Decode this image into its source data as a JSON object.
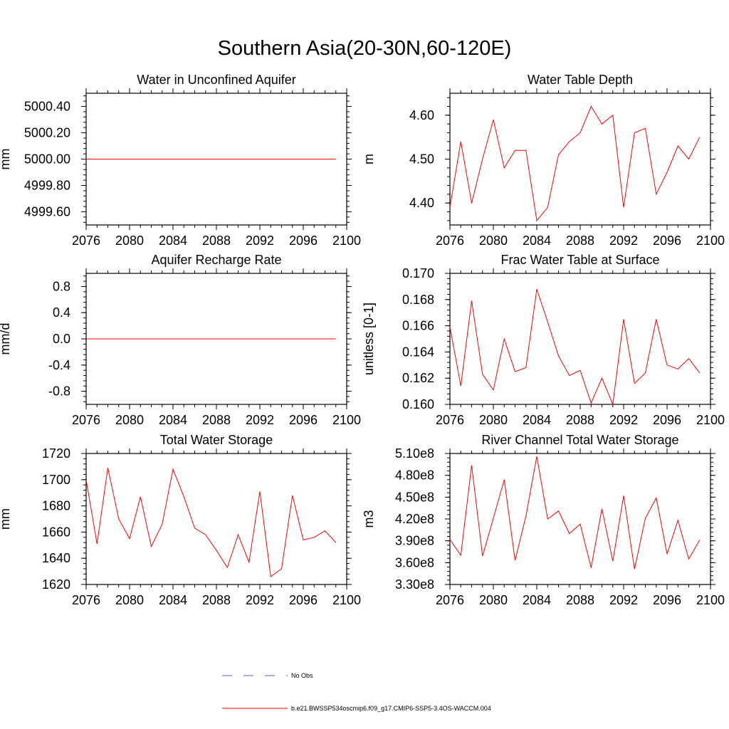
{
  "title": "Southern Asia(20-30N,60-120E)",
  "colors": {
    "series": "#ff0000",
    "obs": "#4466cc",
    "axis": "#000000"
  },
  "legend": {
    "obs_label": "No Obs",
    "model_label": "b.e21.BWSSP534oscmip6.f09_g17.CMIP6-SSP5-3.4OS-WACCM.004"
  },
  "chart_data": [
    {
      "type": "line",
      "title": "Water in Unconfined Aquifer",
      "ylabel": "mm",
      "xlim": [
        2076,
        2100
      ],
      "ylim": [
        4999.5,
        5000.5
      ],
      "xticks": [
        2076,
        2080,
        2084,
        2088,
        2092,
        2096,
        2100
      ],
      "xtick_labels": [
        "2076",
        "2080",
        "2084",
        "2088",
        "2092",
        "2096",
        "2100"
      ],
      "yticks": [
        4999.6,
        4999.8,
        5000.0,
        5000.2,
        5000.4
      ],
      "ytick_labels": [
        "4999.60",
        "4999.80",
        "5000.00",
        "5000.20",
        "5000.40"
      ],
      "x": [
        2076,
        2077,
        2078,
        2079,
        2080,
        2081,
        2082,
        2083,
        2084,
        2085,
        2086,
        2087,
        2088,
        2089,
        2090,
        2091,
        2092,
        2093,
        2094,
        2095,
        2096,
        2097,
        2098,
        2099
      ],
      "series": [
        {
          "values": [
            5000.0,
            5000.0,
            5000.0,
            5000.0,
            5000.0,
            5000.0,
            5000.0,
            5000.0,
            5000.0,
            5000.0,
            5000.0,
            5000.0,
            5000.0,
            5000.0,
            5000.0,
            5000.0,
            5000.0,
            5000.0,
            5000.0,
            5000.0,
            5000.0,
            5000.0,
            5000.0,
            5000.0
          ]
        }
      ]
    },
    {
      "type": "line",
      "title": "Water Table Depth",
      "ylabel": "m",
      "xlim": [
        2076,
        2100
      ],
      "ylim": [
        4.35,
        4.65
      ],
      "xticks": [
        2076,
        2080,
        2084,
        2088,
        2092,
        2096,
        2100
      ],
      "xtick_labels": [
        "2076",
        "2080",
        "2084",
        "2088",
        "2092",
        "2096",
        "2100"
      ],
      "yticks": [
        4.4,
        4.5,
        4.6
      ],
      "ytick_labels": [
        "4.40",
        "4.50",
        "4.60"
      ],
      "x": [
        2076,
        2077,
        2078,
        2079,
        2080,
        2081,
        2082,
        2083,
        2084,
        2085,
        2086,
        2087,
        2088,
        2089,
        2090,
        2091,
        2092,
        2093,
        2094,
        2095,
        2096,
        2097,
        2098,
        2099
      ],
      "series": [
        {
          "values": [
            4.39,
            4.54,
            4.4,
            4.5,
            4.59,
            4.48,
            4.52,
            4.52,
            4.36,
            4.39,
            4.51,
            4.54,
            4.56,
            4.62,
            4.58,
            4.6,
            4.39,
            4.56,
            4.57,
            4.42,
            4.47,
            4.53,
            4.5,
            4.55
          ]
        }
      ]
    },
    {
      "type": "line",
      "title": "Aquifer Recharge Rate",
      "ylabel": "mm/d",
      "xlim": [
        2076,
        2100
      ],
      "ylim": [
        -1.0,
        1.0
      ],
      "xticks": [
        2076,
        2080,
        2084,
        2088,
        2092,
        2096,
        2100
      ],
      "xtick_labels": [
        "2076",
        "2080",
        "2084",
        "2088",
        "2092",
        "2096",
        "2100"
      ],
      "yticks": [
        -0.8,
        -0.4,
        0.0,
        0.4,
        0.8
      ],
      "ytick_labels": [
        "-0.8",
        "-0.4",
        "0.0",
        "0.4",
        "0.8"
      ],
      "x": [
        2076,
        2077,
        2078,
        2079,
        2080,
        2081,
        2082,
        2083,
        2084,
        2085,
        2086,
        2087,
        2088,
        2089,
        2090,
        2091,
        2092,
        2093,
        2094,
        2095,
        2096,
        2097,
        2098,
        2099
      ],
      "series": [
        {
          "values": [
            0,
            0,
            0,
            0,
            0,
            0,
            0,
            0,
            0,
            0,
            0,
            0,
            0,
            0,
            0,
            0,
            0,
            0,
            0,
            0,
            0,
            0,
            0,
            0
          ]
        }
      ]
    },
    {
      "type": "line",
      "title": "Frac Water Table at Surface",
      "ylabel": "unitless [0-1]",
      "xlim": [
        2076,
        2100
      ],
      "ylim": [
        0.16,
        0.17
      ],
      "xticks": [
        2076,
        2080,
        2084,
        2088,
        2092,
        2096,
        2100
      ],
      "xtick_labels": [
        "2076",
        "2080",
        "2084",
        "2088",
        "2092",
        "2096",
        "2100"
      ],
      "yticks": [
        0.16,
        0.162,
        0.164,
        0.166,
        0.168,
        0.17
      ],
      "ytick_labels": [
        "0.160",
        "0.162",
        "0.164",
        "0.166",
        "0.168",
        "0.170"
      ],
      "x": [
        2076,
        2077,
        2078,
        2079,
        2080,
        2081,
        2082,
        2083,
        2084,
        2085,
        2086,
        2087,
        2088,
        2089,
        2090,
        2091,
        2092,
        2093,
        2094,
        2095,
        2096,
        2097,
        2098,
        2099
      ],
      "series": [
        {
          "values": [
            0.1659,
            0.1614,
            0.1679,
            0.1623,
            0.1611,
            0.165,
            0.1625,
            0.1628,
            0.1688,
            0.1663,
            0.1637,
            0.1622,
            0.1626,
            0.1601,
            0.162,
            0.16,
            0.1665,
            0.1616,
            0.1624,
            0.1665,
            0.163,
            0.1627,
            0.1635,
            0.1624
          ]
        }
      ]
    },
    {
      "type": "line",
      "title": "Total Water Storage",
      "ylabel": "mm",
      "xlim": [
        2076,
        2100
      ],
      "ylim": [
        1620,
        1720
      ],
      "xticks": [
        2076,
        2080,
        2084,
        2088,
        2092,
        2096,
        2100
      ],
      "xtick_labels": [
        "2076",
        "2080",
        "2084",
        "2088",
        "2092",
        "2096",
        "2100"
      ],
      "yticks": [
        1620,
        1640,
        1660,
        1680,
        1700,
        1720
      ],
      "ytick_labels": [
        "1620",
        "1640",
        "1660",
        "1680",
        "1700",
        "1720"
      ],
      "x": [
        2076,
        2077,
        2078,
        2079,
        2080,
        2081,
        2082,
        2083,
        2084,
        2085,
        2086,
        2087,
        2088,
        2089,
        2090,
        2091,
        2092,
        2093,
        2094,
        2095,
        2096,
        2097,
        2098,
        2099
      ],
      "series": [
        {
          "values": [
            1700,
            1651,
            1709,
            1670,
            1655,
            1687,
            1649,
            1666,
            1708,
            1687,
            1663,
            1658,
            1646,
            1633,
            1658,
            1637,
            1691,
            1626,
            1632,
            1688,
            1654,
            1656,
            1661,
            1652
          ]
        }
      ]
    },
    {
      "type": "line",
      "title": "River Channel Total Water Storage",
      "ylabel": "m3",
      "xlim": [
        2076,
        2100
      ],
      "ylim": [
        330000000,
        510000000
      ],
      "xticks": [
        2076,
        2080,
        2084,
        2088,
        2092,
        2096,
        2100
      ],
      "xtick_labels": [
        "2076",
        "2080",
        "2084",
        "2088",
        "2092",
        "2096",
        "2100"
      ],
      "yticks": [
        330000000,
        360000000,
        390000000,
        420000000,
        450000000,
        480000000,
        510000000
      ],
      "ytick_labels": [
        "3.30e8",
        "3.60e8",
        "3.90e8",
        "4.20e8",
        "4.50e8",
        "4.80e8",
        "5.10e8"
      ],
      "x": [
        2076,
        2077,
        2078,
        2079,
        2080,
        2081,
        2082,
        2083,
        2084,
        2085,
        2086,
        2087,
        2088,
        2089,
        2090,
        2091,
        2092,
        2093,
        2094,
        2095,
        2096,
        2097,
        2098,
        2099
      ],
      "series": [
        {
          "values": [
            392000000,
            370000000,
            494000000,
            369000000,
            421000000,
            474000000,
            363000000,
            424000000,
            506000000,
            420000000,
            431000000,
            400000000,
            413000000,
            353000000,
            434000000,
            362000000,
            452000000,
            351000000,
            421000000,
            449000000,
            372000000,
            418000000,
            365000000,
            391000000
          ]
        }
      ]
    }
  ]
}
